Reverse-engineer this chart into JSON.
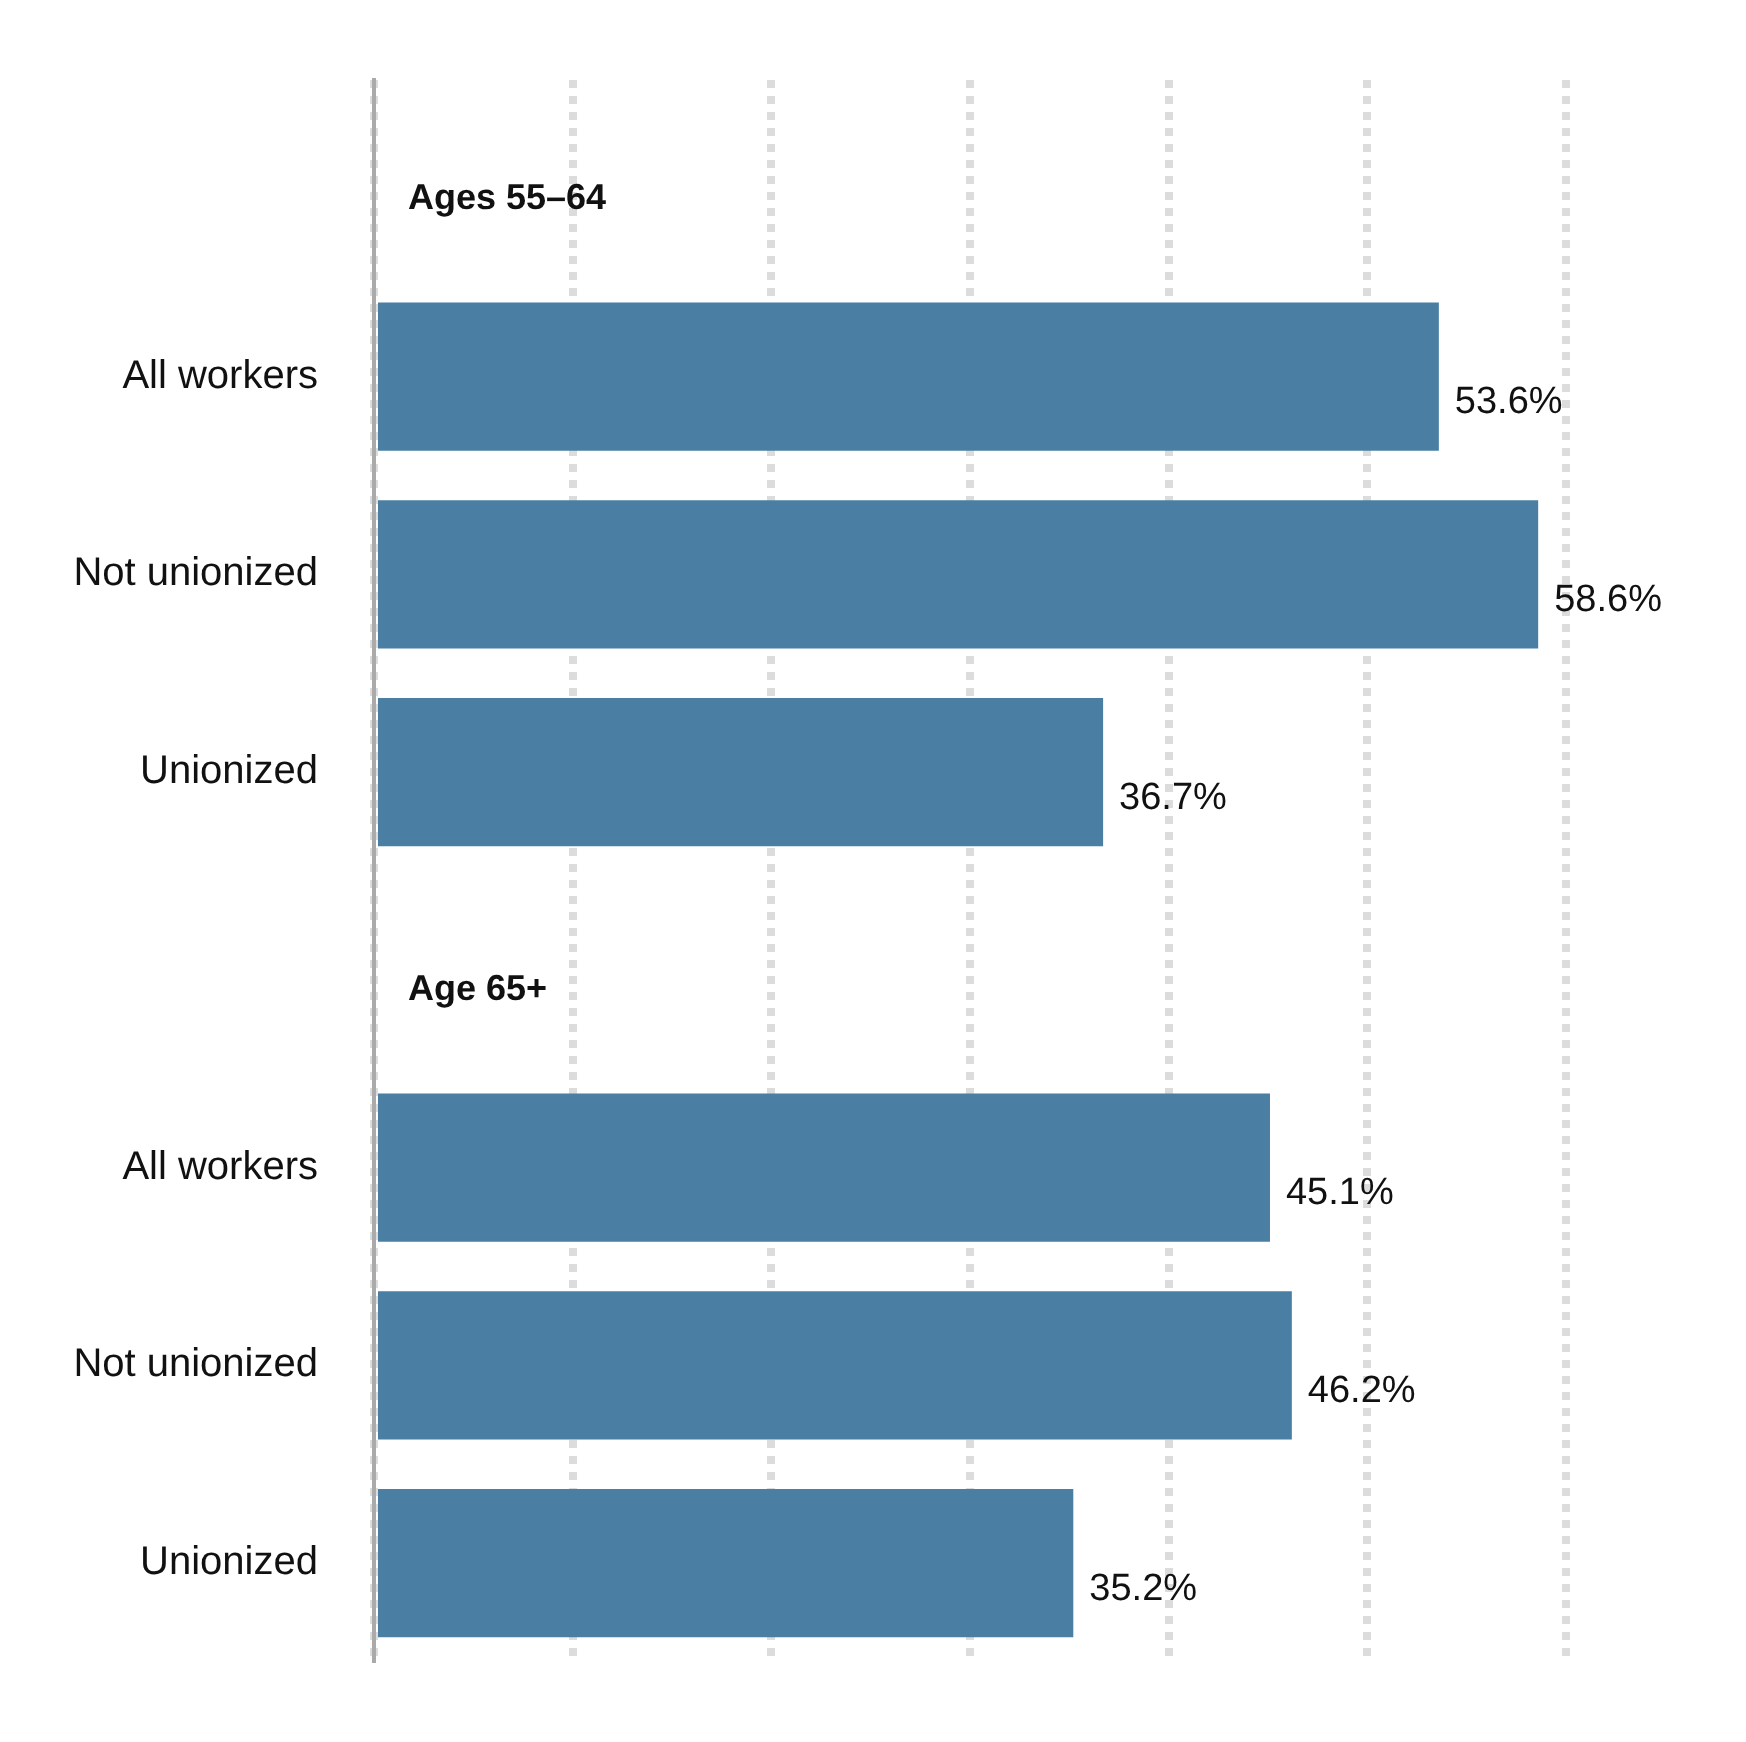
{
  "chart_data": {
    "type": "bar",
    "orientation": "horizontal",
    "categories": [
      null,
      "All workers",
      "Not unionized",
      "Unionized",
      null,
      "All workers",
      "Not unionized",
      "Unionized"
    ],
    "series": [
      {
        "color": "#4a7fa3",
        "values": [
          null,
          53.6,
          58.6,
          36.7,
          null,
          45.1,
          46.2,
          35.2
        ],
        "value_labels": [
          null,
          "53.6%",
          "58.6%",
          "36.7%",
          null,
          "45.1%",
          "46.2%",
          "35.2%"
        ]
      }
    ],
    "annotations": [
      "Ages 55–64",
      "Age 65+"
    ],
    "grid": "x",
    "tick_labels": "y",
    "legend": false
  }
}
